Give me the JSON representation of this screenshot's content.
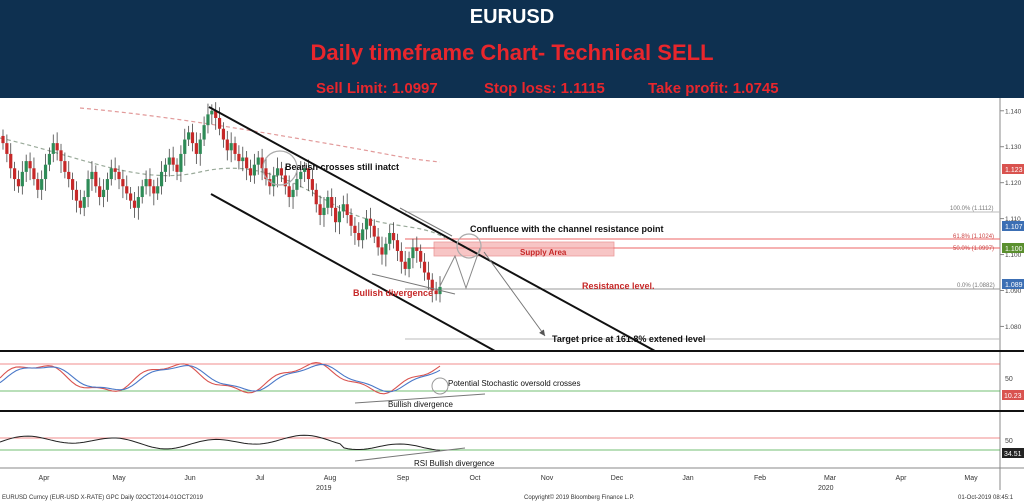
{
  "header": {
    "title": "EURUSD",
    "subtitle": "Daily timeframe Chart- Technical SELL",
    "sell_limit": "Sell Limit: 1.0997",
    "stop_loss": "Stop loss: 1.1115",
    "take_profit": "Take profit: 1.0745"
  },
  "colors": {
    "header_bg": "#0e3050",
    "header_title": "#ffffff",
    "header_accent": "#e8262c",
    "candle_up": "#2e8b57",
    "candle_down": "#c62828",
    "stoch_k": "#d9534f",
    "stoch_d": "#4a78c8",
    "rsi_line": "#222222"
  },
  "annotations": {
    "bearish_crosses": "Bearish crosses still inatct",
    "confluence": "Confluence with the channel resistance point",
    "supply_area": "Supply Area",
    "resistance": "Resistance level.",
    "bullish_divergence_price": "Bullish divergence",
    "target": "Target price at 161.8% extened level",
    "stoch_cross": "Potential Stochastic oversold crosses",
    "stoch_divergence": "Bullish divergence",
    "rsi_divergence": "RSI Bullish divergence"
  },
  "fib_labels": {
    "f100": "100.0% (1.1112)",
    "f618": "61.8% (1.1024)",
    "f50": "50.0% (1.0997)",
    "f0": "0.0% (1.0882)"
  },
  "price_badges": {
    "b1": "1.123",
    "b2": "1.107",
    "b3": "1.100",
    "b4": "1.089"
  },
  "indicator_badges": {
    "stoch": "10.23",
    "rsi": "34.51"
  },
  "footer": {
    "source": "EURUSD Curncy (EUR-USD X-RATE) GPC  Daily 02OCT2014-01OCT2019",
    "copyright": "Copyright© 2019 Bloomberg Finance L.P.",
    "timestamp": "01-Oct-2019 08:45:1",
    "year_2019": "2019",
    "year_2020": "2020"
  },
  "chart_data": {
    "type": "candlestick",
    "x_ticks": [
      "Apr",
      "May",
      "Jun",
      "Jul",
      "Aug",
      "Sep",
      "Oct",
      "Nov",
      "Dec",
      "Jan",
      "Feb",
      "Mar",
      "Apr",
      "May"
    ],
    "y_ticks": [
      "1.140",
      "1.130",
      "1.120",
      "1.110",
      "1.100",
      "1.090",
      "1.080"
    ],
    "ylim": [
      1.074,
      1.143
    ],
    "stoch_ticks": [
      "50"
    ],
    "rsi_ticks": [
      "50"
    ],
    "fib_levels": [
      1.1112,
      1.1024,
      1.0997,
      1.0882
    ],
    "close": [
      1.131,
      1.128,
      1.124,
      1.121,
      1.119,
      1.123,
      1.126,
      1.124,
      1.121,
      1.118,
      1.121,
      1.125,
      1.128,
      1.131,
      1.129,
      1.126,
      1.123,
      1.121,
      1.118,
      1.115,
      1.113,
      1.116,
      1.121,
      1.123,
      1.119,
      1.116,
      1.118,
      1.121,
      1.124,
      1.123,
      1.121,
      1.119,
      1.117,
      1.115,
      1.113,
      1.116,
      1.119,
      1.121,
      1.119,
      1.117,
      1.119,
      1.123,
      1.125,
      1.127,
      1.125,
      1.123,
      1.128,
      1.132,
      1.134,
      1.131,
      1.128,
      1.132,
      1.136,
      1.139,
      1.14,
      1.138,
      1.135,
      1.132,
      1.129,
      1.131,
      1.128,
      1.126,
      1.127,
      1.124,
      1.122,
      1.125,
      1.127,
      1.124,
      1.121,
      1.119,
      1.122,
      1.124,
      1.122,
      1.119,
      1.116,
      1.118,
      1.121,
      1.123,
      1.124,
      1.121,
      1.118,
      1.114,
      1.111,
      1.113,
      1.116,
      1.113,
      1.109,
      1.112,
      1.114,
      1.111,
      1.108,
      1.106,
      1.104,
      1.107,
      1.11,
      1.108,
      1.105,
      1.102,
      1.1,
      1.103,
      1.106,
      1.104,
      1.101,
      1.098,
      1.096,
      1.099,
      1.102,
      1.101,
      1.098,
      1.095,
      1.093,
      1.09,
      1.089,
      1.091
    ]
  }
}
